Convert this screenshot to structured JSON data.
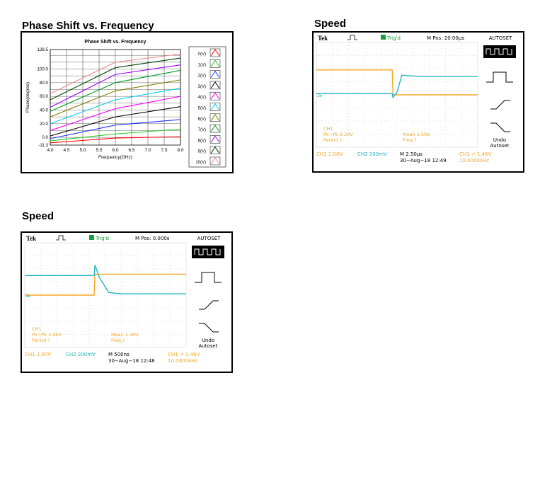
{
  "sections": {
    "phase_title": "Phase Shift vs. Frequency",
    "speed1_title": "Speed",
    "speed2_title": "Speed"
  },
  "colors": {
    "scope_bg": "#ffffff",
    "ch1": "#f5a623",
    "ch2": "#22b5c0",
    "trig": "#1a9e3a"
  },
  "chart_data": [
    {
      "type": "line",
      "title": "Phase Shift vs. Frequency",
      "xlabel": "Frequency(GHz)",
      "ylabel": "Phase(degree)",
      "xlim": [
        4.0,
        8.0
      ],
      "ylim": [
        -11.3,
        128.5
      ],
      "x_ticks": [
        "4.0",
        "4.5",
        "5.0",
        "5.5",
        "6.0",
        "6.5",
        "7.0",
        "7.5",
        "8.0"
      ],
      "y_ticks": [
        "128.5",
        "100.0",
        "80.0",
        "60.0",
        "40.0",
        "20.0",
        "0.0",
        "-11.3"
      ],
      "grid": true,
      "legend_placement": "right",
      "x": [
        4.0,
        6.0,
        8.0
      ],
      "series": [
        {
          "name": "0(V)",
          "color": "#ff0000",
          "values": [
            -8,
            -1,
            1
          ]
        },
        {
          "name": "1(V)",
          "color": "#22cc22",
          "values": [
            -5,
            5,
            12
          ]
        },
        {
          "name": "2(V)",
          "color": "#2233ff",
          "values": [
            -2,
            18,
            26
          ]
        },
        {
          "name": "3(V)",
          "color": "#000000",
          "values": [
            2,
            30,
            45
          ]
        },
        {
          "name": "4(V)",
          "color": "#ff00ff",
          "values": [
            10,
            42,
            60
          ]
        },
        {
          "name": "5(V)",
          "color": "#00ccee",
          "values": [
            20,
            55,
            72
          ]
        },
        {
          "name": "6(V)",
          "color": "#808000",
          "values": [
            30,
            68,
            84
          ]
        },
        {
          "name": "7(V)",
          "color": "#009922",
          "values": [
            38,
            80,
            98
          ]
        },
        {
          "name": "8(V)",
          "color": "#9900ff",
          "values": [
            44,
            92,
            106
          ]
        },
        {
          "name": "9(V)",
          "color": "#004400",
          "values": [
            55,
            102,
            116
          ]
        },
        {
          "name": "10(V)",
          "color": "#ee8888",
          "values": [
            64,
            110,
            122
          ]
        }
      ]
    },
    {
      "type": "line",
      "title": "",
      "xlim": [
        0,
        10
      ],
      "ylim": [
        -4,
        4
      ],
      "x": [
        0,
        4.7,
        4.75,
        5.0,
        5.3,
        6.5,
        10
      ],
      "series": [
        {
          "name": "CH1",
          "color": "#f5a623",
          "values": [
            1.9,
            1.9,
            0.0,
            0.0,
            0.0,
            0.0,
            0.0
          ]
        },
        {
          "name": "CH2",
          "color": "#22b5c0",
          "values": [
            0.1,
            0.1,
            -0.2,
            0.2,
            1.5,
            1.4,
            1.4
          ]
        }
      ],
      "scope": {
        "brand": "Tek",
        "trig_label": "Trig'd",
        "m_pos": "M Pos: 20.00µs",
        "autoset": "AUTOSET",
        "undo": "Undo",
        "autoset2": "Autoset",
        "ch_marker": "2",
        "meas_left": [
          "CH1",
          "Pk−Pk 3.20V",
          "Period ?"
        ],
        "meas_right": [
          "Mean 1.50V",
          "Freq ?"
        ],
        "bottom_ch1": "CH1  2.00V",
        "bottom_ch2": "CH2  200mV",
        "bottom_m": "M 2.50µs",
        "bottom_date": "30−Aug−18 12:49",
        "bottom_trig": "CH1 ↗ 1.46V",
        "bottom_freq": "10.0000kHz"
      }
    },
    {
      "type": "line",
      "title": "",
      "xlim": [
        0,
        10
      ],
      "ylim": [
        -4,
        4
      ],
      "x": [
        0,
        4.3,
        4.35,
        4.6,
        5.2,
        6.0,
        10
      ],
      "series": [
        {
          "name": "CH1",
          "color": "#f5a623",
          "values": [
            0.0,
            0.0,
            1.6,
            1.6,
            1.6,
            1.6,
            1.6
          ]
        },
        {
          "name": "CH2",
          "color": "#22b5c0",
          "values": [
            1.5,
            1.5,
            2.3,
            1.4,
            0.2,
            0.1,
            0.1
          ]
        }
      ],
      "scope": {
        "brand": "Tek",
        "trig_label": "Trig'd",
        "m_pos": "M Pos: 0.000s",
        "autoset": "AUTOSET",
        "undo": "Undo",
        "autoset2": "Autoset",
        "ch_marker": "2",
        "meas_left": [
          "CH1",
          "Pk−Pk 3.36V",
          "Period ?"
        ],
        "meas_right": [
          "Mean 1.46V",
          "Freq ?"
        ],
        "bottom_ch1": "CH1  2.00V",
        "bottom_ch2": "CH2  200mV",
        "bottom_m": "M 500ns",
        "bottom_date": "30−Aug−18 12:48",
        "bottom_trig": "CH1 ↗ 1.46V",
        "bottom_freq": "10.0000kHz"
      }
    }
  ]
}
